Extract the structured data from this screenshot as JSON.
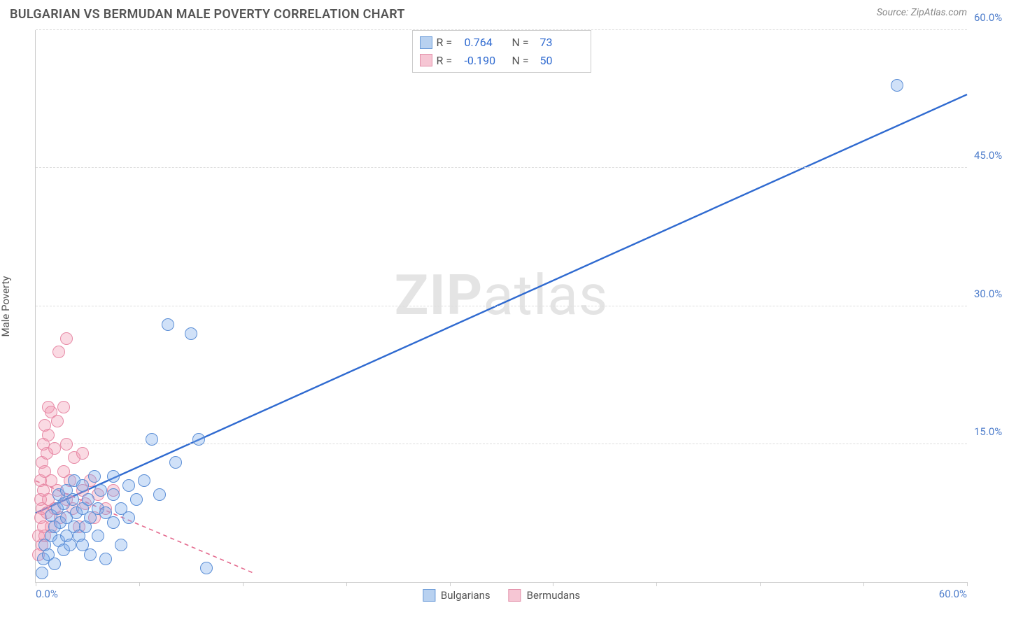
{
  "header": {
    "title": "BULGARIAN VS BERMUDAN MALE POVERTY CORRELATION CHART",
    "source": "Source: ZipAtlas.com"
  },
  "chart": {
    "type": "scatter",
    "ylabel": "Male Poverty",
    "watermark_bold": "ZIP",
    "watermark_light": "atlas",
    "background_color": "#ffffff",
    "axis_color": "#cccccc",
    "grid_color": "#dddddd",
    "label_color": "#555555",
    "tick_label_color": "#4f7ecc",
    "xlim": [
      0,
      60
    ],
    "ylim": [
      0,
      60
    ],
    "xticks_minor": [
      0,
      6.67,
      13.33,
      20,
      26.67,
      33.33,
      40,
      46.67,
      53.33,
      60
    ],
    "yticks": [
      {
        "v": 15,
        "label": "15.0%"
      },
      {
        "v": 30,
        "label": "30.0%"
      },
      {
        "v": 45,
        "label": "45.0%"
      },
      {
        "v": 60,
        "label": "60.0%"
      }
    ],
    "xlabels": [
      {
        "v": 0,
        "label": "0.0%"
      },
      {
        "v": 60,
        "label": "60.0%"
      }
    ],
    "marker_radius": 9,
    "marker_stroke_width": 1.2,
    "series": {
      "blue": {
        "name": "Bulgarians",
        "fill": "rgba(120,170,235,0.35)",
        "stroke": "#5b8ed6",
        "line_color": "#2f6ad0",
        "line_width": 2.4,
        "line_dash": "solid",
        "trend": {
          "x1": 0,
          "y1": 7.5,
          "x2": 60,
          "y2": 53.0
        },
        "r_value": "0.764",
        "n_value": "73",
        "points": [
          [
            0.4,
            1.0
          ],
          [
            0.5,
            2.5
          ],
          [
            0.6,
            4.0
          ],
          [
            0.8,
            3.0
          ],
          [
            1.0,
            5.0
          ],
          [
            1.0,
            7.2
          ],
          [
            1.2,
            2.0
          ],
          [
            1.2,
            6.0
          ],
          [
            1.4,
            8.0
          ],
          [
            1.5,
            4.5
          ],
          [
            1.5,
            9.5
          ],
          [
            1.6,
            6.5
          ],
          [
            1.8,
            3.5
          ],
          [
            1.8,
            8.5
          ],
          [
            2.0,
            5.0
          ],
          [
            2.0,
            10.0
          ],
          [
            2.0,
            7.0
          ],
          [
            2.2,
            4.0
          ],
          [
            2.4,
            9.0
          ],
          [
            2.5,
            6.0
          ],
          [
            2.5,
            11.0
          ],
          [
            2.6,
            7.5
          ],
          [
            2.8,
            5.0
          ],
          [
            3.0,
            8.0
          ],
          [
            3.0,
            4.0
          ],
          [
            3.0,
            10.5
          ],
          [
            3.2,
            6.0
          ],
          [
            3.4,
            9.0
          ],
          [
            3.5,
            7.0
          ],
          [
            3.5,
            3.0
          ],
          [
            3.8,
            11.5
          ],
          [
            4.0,
            8.0
          ],
          [
            4.0,
            5.0
          ],
          [
            4.2,
            10.0
          ],
          [
            4.5,
            7.5
          ],
          [
            4.5,
            2.5
          ],
          [
            5.0,
            9.5
          ],
          [
            5.0,
            11.5
          ],
          [
            5.0,
            6.5
          ],
          [
            5.5,
            8.0
          ],
          [
            5.5,
            4.0
          ],
          [
            6.0,
            10.5
          ],
          [
            6.0,
            7.0
          ],
          [
            6.5,
            9.0
          ],
          [
            7.0,
            11.0
          ],
          [
            7.5,
            15.5
          ],
          [
            8.0,
            9.5
          ],
          [
            8.5,
            28.0
          ],
          [
            9.0,
            13.0
          ],
          [
            10.0,
            27.0
          ],
          [
            10.5,
            15.5
          ],
          [
            11.0,
            1.5
          ],
          [
            55.5,
            54.0
          ]
        ]
      },
      "pink": {
        "name": "Bermudans",
        "fill": "rgba(240,150,175,0.35)",
        "stroke": "#e78aa6",
        "line_color": "#e46a8e",
        "line_width": 1.6,
        "line_dash": "dashed",
        "trend": {
          "x1": 0,
          "y1": 11.0,
          "x2": 14.0,
          "y2": 1.0
        },
        "r_value": "-0.190",
        "n_value": "50",
        "points": [
          [
            0.2,
            3.0
          ],
          [
            0.2,
            5.0
          ],
          [
            0.3,
            7.0
          ],
          [
            0.3,
            9.0
          ],
          [
            0.3,
            11.0
          ],
          [
            0.4,
            4.0
          ],
          [
            0.4,
            8.0
          ],
          [
            0.4,
            13.0
          ],
          [
            0.5,
            6.0
          ],
          [
            0.5,
            10.0
          ],
          [
            0.5,
            15.0
          ],
          [
            0.6,
            5.0
          ],
          [
            0.6,
            12.0
          ],
          [
            0.6,
            17.0
          ],
          [
            0.7,
            7.5
          ],
          [
            0.7,
            14.0
          ],
          [
            0.8,
            9.0
          ],
          [
            0.8,
            16.0
          ],
          [
            0.8,
            19.0
          ],
          [
            1.0,
            6.0
          ],
          [
            1.0,
            11.0
          ],
          [
            1.0,
            18.5
          ],
          [
            1.2,
            8.0
          ],
          [
            1.2,
            14.5
          ],
          [
            1.4,
            10.0
          ],
          [
            1.4,
            17.5
          ],
          [
            1.5,
            25.0
          ],
          [
            1.6,
            7.0
          ],
          [
            1.8,
            12.0
          ],
          [
            1.8,
            19.0
          ],
          [
            2.0,
            9.0
          ],
          [
            2.0,
            15.0
          ],
          [
            2.0,
            26.5
          ],
          [
            2.2,
            11.0
          ],
          [
            2.4,
            8.0
          ],
          [
            2.5,
            13.5
          ],
          [
            2.8,
            6.0
          ],
          [
            3.0,
            10.0
          ],
          [
            3.0,
            14.0
          ],
          [
            3.2,
            8.5
          ],
          [
            3.5,
            11.0
          ],
          [
            3.8,
            7.0
          ],
          [
            4.0,
            9.5
          ],
          [
            4.5,
            8.0
          ],
          [
            5.0,
            10.0
          ]
        ]
      }
    },
    "legend_top_labels": {
      "r": "R =",
      "n": "N ="
    },
    "swatch": {
      "blue_fill": "#b8d1f0",
      "blue_border": "#6a9ad8",
      "pink_fill": "#f6c6d4",
      "pink_border": "#e28ea8"
    }
  }
}
